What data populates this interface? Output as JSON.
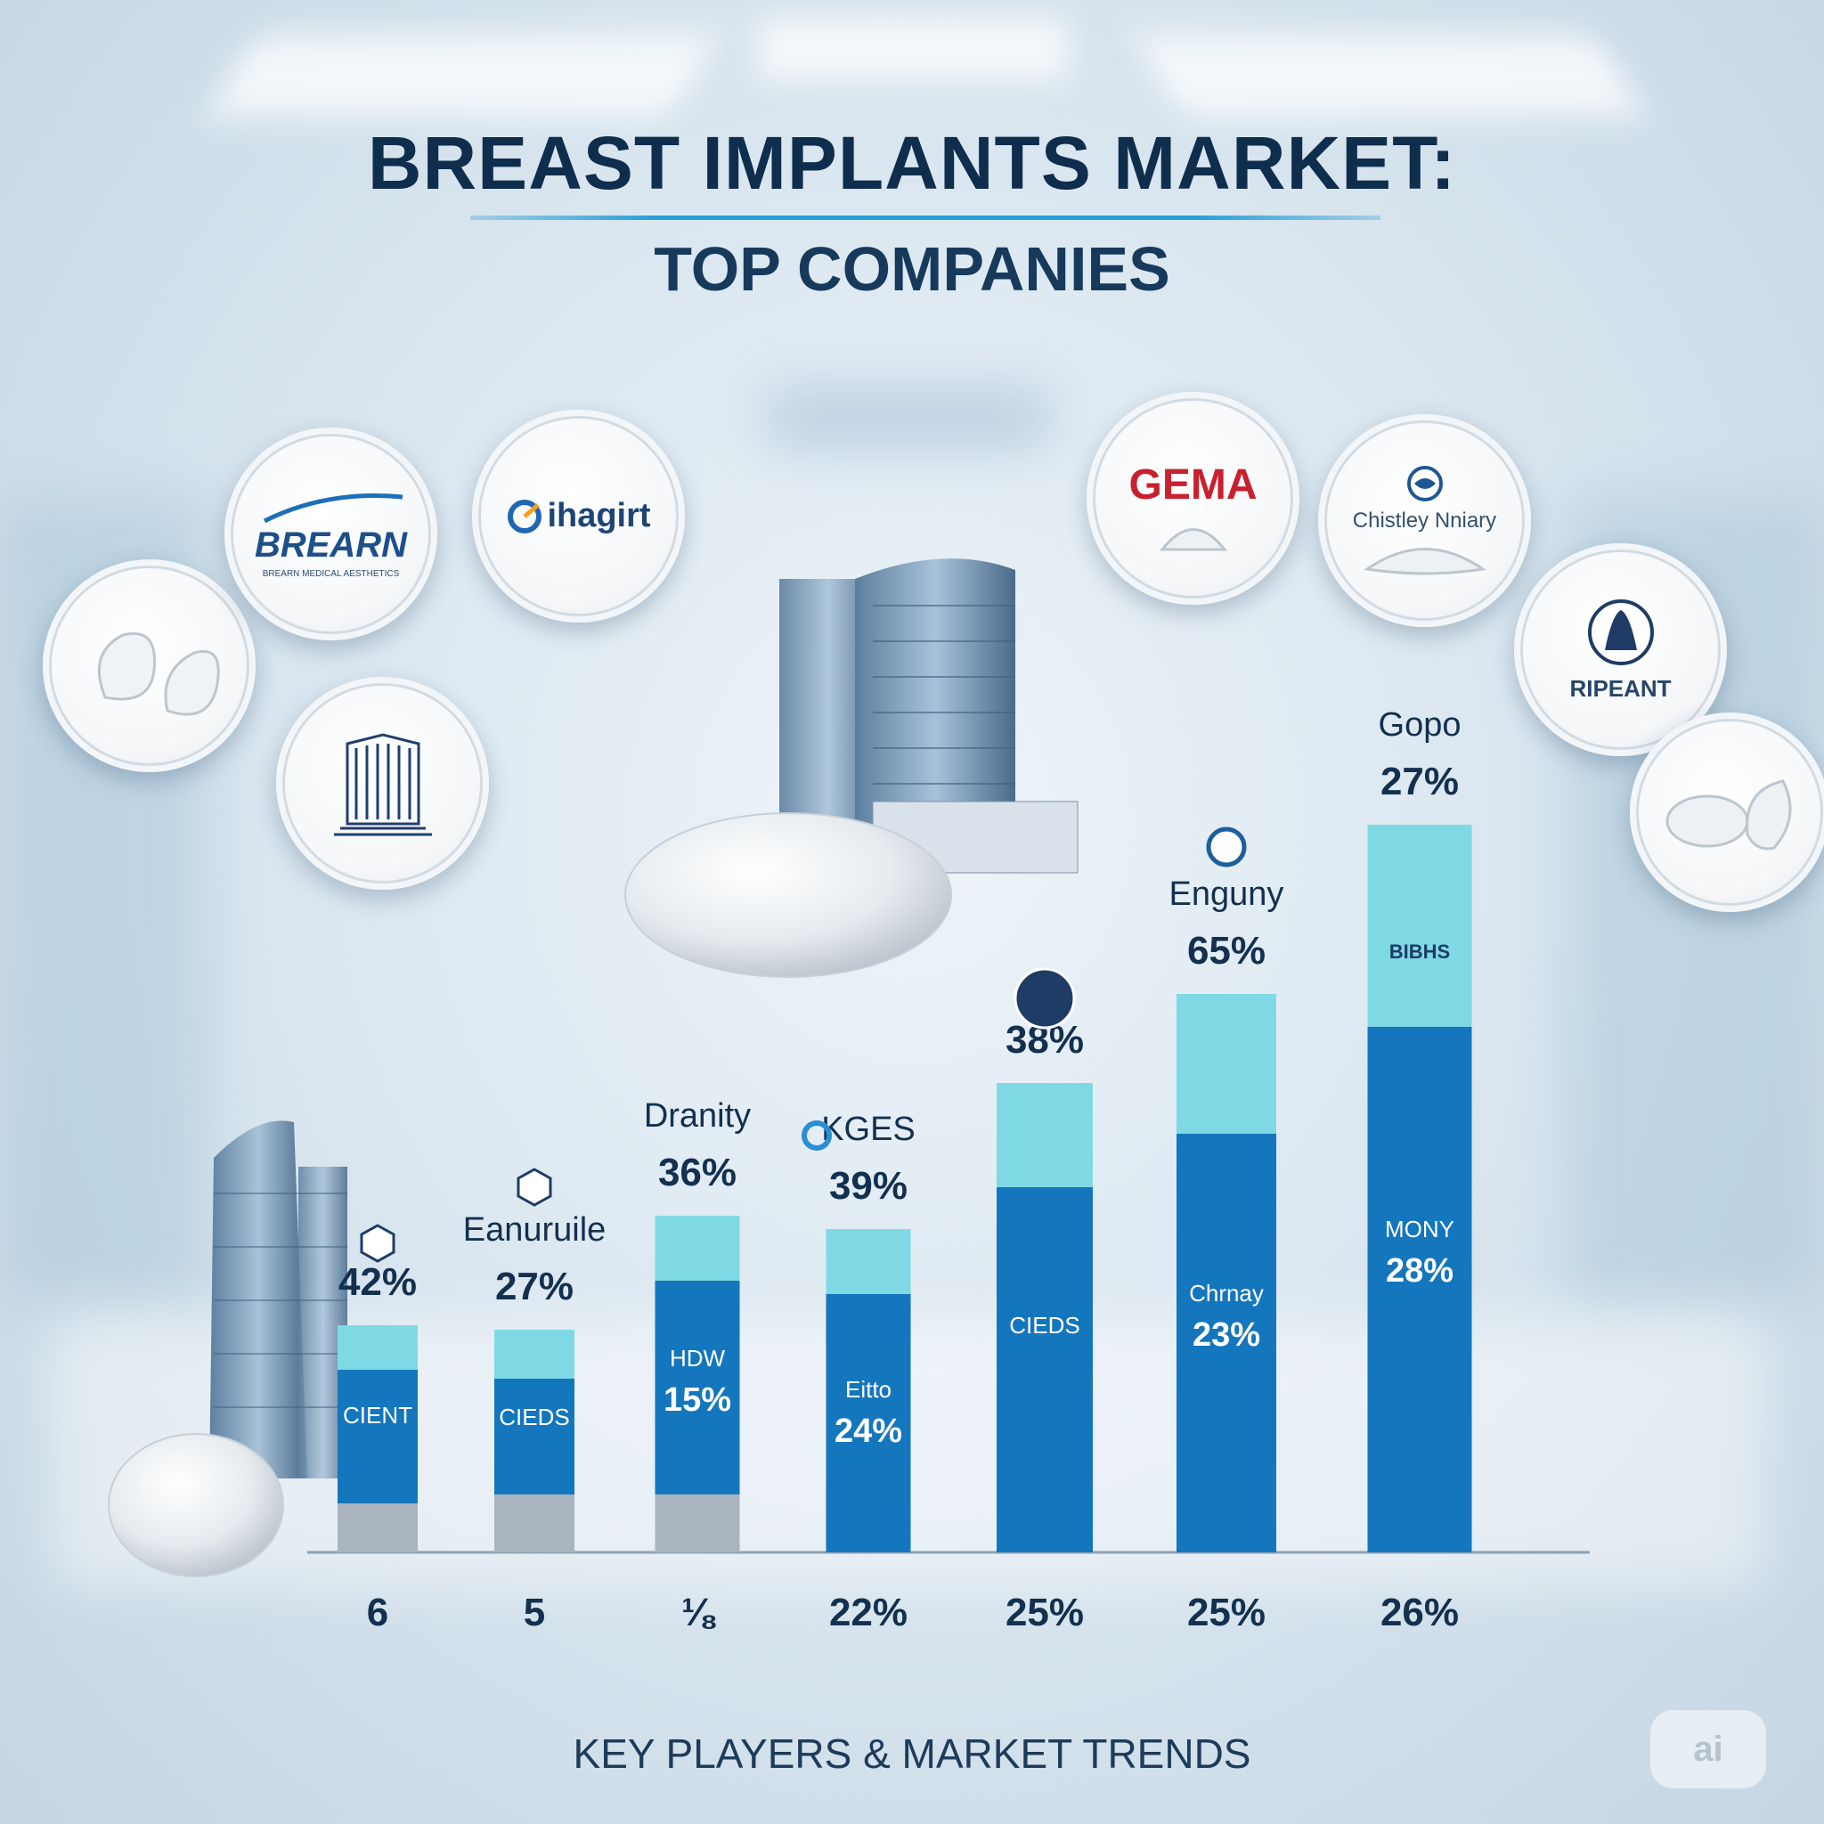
{
  "header": {
    "title": "BREAST IMPLANTS MARKET:",
    "subtitle": "TOP COMPANIES"
  },
  "footer": {
    "text": "KEY PLAYERS & MARKET TRENDS",
    "badge": "ai"
  },
  "logos": [
    {
      "name": "BREARN",
      "tagline": "BREARN MEDICAL AESTHETICS",
      "color": "#1d4f8a"
    },
    {
      "name": "ihagirt",
      "color": "#1f4476"
    },
    {
      "name": "GEMA",
      "color": "#c8202e"
    },
    {
      "name": "Chistley Nniary",
      "color": "#36506a"
    },
    {
      "name": "RIPEANT",
      "color": "#27466a"
    }
  ],
  "chart_data": {
    "type": "bar",
    "categories": [
      "6",
      "5",
      "⅛",
      "22%",
      "25%",
      "25%",
      "26%"
    ],
    "bar_heads": [
      {
        "company": "",
        "value": "42%",
        "emblem": "hex"
      },
      {
        "company": "Eanuruile",
        "value": "27%",
        "emblem": "hex"
      },
      {
        "company": "Dranity",
        "value": "36%",
        "emblem": ""
      },
      {
        "company": "KGES",
        "value": "39%",
        "emblem": "kges"
      },
      {
        "company": "",
        "value": "38%",
        "emblem": "circle"
      },
      {
        "company": "Enguny",
        "value": "65%",
        "emblem": "swirl"
      },
      {
        "company": "Gopo",
        "value": "27%",
        "emblem": ""
      }
    ],
    "inner_labels": [
      {
        "name": "CIENT",
        "value": ""
      },
      {
        "name": "CIEDS",
        "value": ""
      },
      {
        "name": "HDW",
        "value": "15%"
      },
      {
        "name": "Eitto",
        "value": "24%"
      },
      {
        "name": "CIEDS",
        "value": ""
      },
      {
        "name": "Chrnay",
        "value": "23%"
      },
      {
        "name": "MONY",
        "value": "28%"
      }
    ],
    "top_bar_label": "BIBHS",
    "series": [
      {
        "segment": "dark",
        "values": [
          150,
          130,
          240,
          290,
          410,
          470,
          590
        ]
      },
      {
        "segment": "light",
        "values": [
          50,
          55,
          73,
          73,
          117,
          157,
          227
        ]
      },
      {
        "segment": "grey",
        "values": [
          55,
          65,
          65,
          0,
          0,
          0,
          0
        ]
      }
    ],
    "colors": {
      "dark": "#1476bd",
      "light": "#7fd9e4",
      "grey": "#a9b4bf",
      "text": "#13304f"
    }
  }
}
